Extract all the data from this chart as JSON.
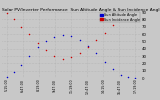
{
  "title": "Solar PV/Inverter Performance  Sun Altitude Angle & Sun Incidence Angle on PV Panels",
  "legend_labels": [
    "Sun Altitude Angle",
    "Sun Incidence Angle"
  ],
  "legend_colors": [
    "#0000cc",
    "#cc0000"
  ],
  "background_color": "#c8c8c8",
  "plot_bg_color": "#c8c8c8",
  "grid_color": "#aaaaaa",
  "ymin": 0,
  "ymax": 90,
  "ytick_values": [
    90,
    80,
    70,
    60,
    50,
    40,
    30,
    20,
    10,
    0
  ],
  "title_fontsize": 3.2,
  "tick_fontsize": 2.8,
  "legend_fontsize": 2.5,
  "sun_altitude_x": [
    0.04,
    0.09,
    0.14,
    0.2,
    0.26,
    0.32,
    0.38,
    0.44,
    0.5,
    0.56,
    0.62,
    0.68,
    0.74,
    0.8,
    0.86,
    0.91,
    0.96
  ],
  "sun_altitude_y": [
    2,
    8,
    18,
    30,
    42,
    50,
    56,
    58,
    57,
    52,
    44,
    34,
    22,
    12,
    4,
    1,
    0
  ],
  "sun_incidence_x": [
    0.04,
    0.09,
    0.14,
    0.2,
    0.26,
    0.32,
    0.38,
    0.44,
    0.5,
    0.56,
    0.62,
    0.68,
    0.74,
    0.8,
    0.86,
    0.91,
    0.96
  ],
  "sun_incidence_y": [
    88,
    80,
    70,
    60,
    48,
    38,
    30,
    26,
    28,
    34,
    42,
    52,
    62,
    72,
    80,
    86,
    90
  ],
  "xtick_labels": [
    "5:15:00",
    "6:47:00",
    "8:19:00",
    "9:47:00",
    "11:19:00",
    "12:47:00",
    "14:15:00",
    "15:47:00",
    "17:19:00"
  ],
  "xtick_positions": [
    0.04,
    0.155,
    0.27,
    0.385,
    0.5,
    0.615,
    0.73,
    0.845,
    0.96
  ]
}
